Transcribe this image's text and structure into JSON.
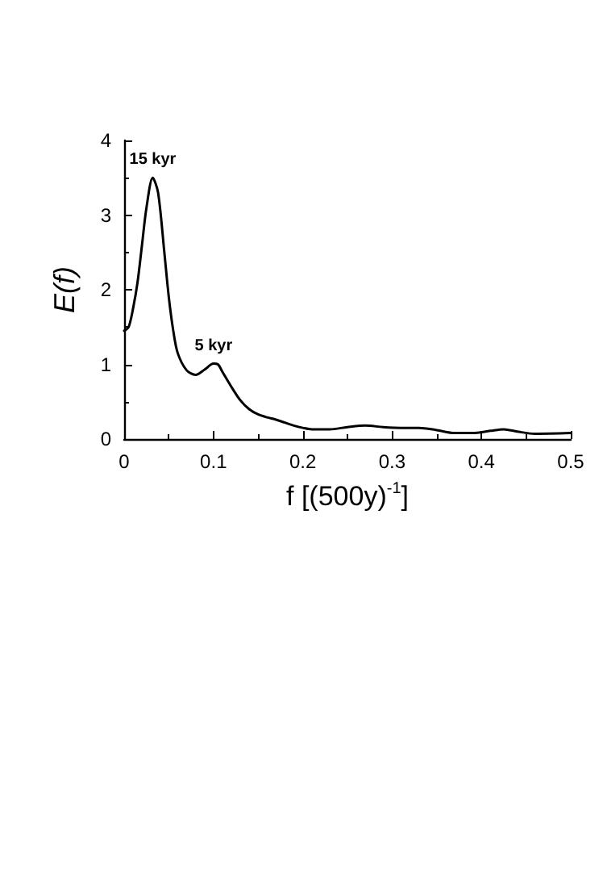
{
  "chart_data": {
    "type": "line",
    "xlabel": "f [(500y)$^{-1}$]",
    "ylabel": "E(f)",
    "x": [
      0,
      0.005,
      0.01,
      0.015,
      0.02,
      0.025,
      0.032,
      0.038,
      0.045,
      0.05,
      0.055,
      0.06,
      0.07,
      0.08,
      0.09,
      0.1,
      0.105,
      0.11,
      0.12,
      0.13,
      0.14,
      0.15,
      0.16,
      0.17,
      0.18,
      0.19,
      0.2,
      0.21,
      0.22,
      0.23,
      0.25,
      0.27,
      0.29,
      0.31,
      0.33,
      0.35,
      0.37,
      0.39,
      0.41,
      0.425,
      0.44,
      0.46,
      0.5
    ],
    "series": [
      {
        "color": "#000000",
        "values": [
          1.45,
          1.5,
          1.75,
          2.1,
          2.6,
          3.1,
          3.5,
          3.3,
          2.5,
          1.9,
          1.45,
          1.15,
          0.92,
          0.86,
          0.93,
          1.01,
          1.0,
          0.9,
          0.7,
          0.52,
          0.4,
          0.33,
          0.29,
          0.26,
          0.22,
          0.18,
          0.15,
          0.13,
          0.13,
          0.13,
          0.16,
          0.18,
          0.16,
          0.15,
          0.15,
          0.12,
          0.08,
          0.08,
          0.11,
          0.13,
          0.1,
          0.07,
          0.08
        ]
      }
    ],
    "xlim": [
      0,
      0.5
    ],
    "xticks": [
      0,
      0.1,
      0.2,
      0.3,
      0.4,
      0.5
    ],
    "ylim": [
      0,
      4
    ],
    "yticks": [
      0,
      1,
      2,
      3,
      4
    ],
    "grid": false,
    "marker": "none",
    "line_style": "solid",
    "annotations": [
      {
        "text": "15 kyr",
        "x": 0.032,
        "y": 3.5
      },
      {
        "text": "5 kyr",
        "x": 0.1,
        "y": 1.01
      }
    ]
  }
}
